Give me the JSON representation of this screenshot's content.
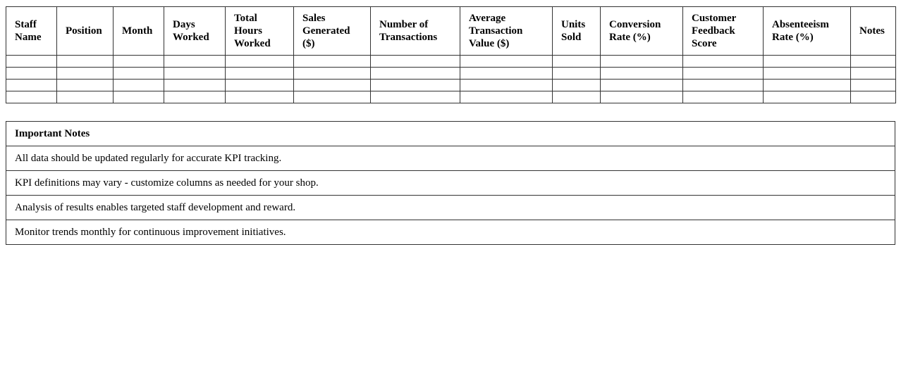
{
  "kpi_table": {
    "headers": [
      "Staff Name",
      "Position",
      "Month",
      "Days Worked",
      "Total Hours Worked",
      "Sales Generated ($)",
      "Number of Transactions",
      "Average Transaction Value ($)",
      "Units Sold",
      "Conversion Rate (%)",
      "Customer Feedback Score",
      "Absenteeism Rate (%)",
      "Notes"
    ],
    "row_count": 4
  },
  "notes": {
    "title": "Important Notes",
    "items": [
      "All data should be updated regularly for accurate KPI tracking.",
      "KPI definitions may vary - customize columns as needed for your shop.",
      "Analysis of results enables targeted staff development and reward.",
      "Monitor trends monthly for continuous improvement initiatives."
    ]
  }
}
